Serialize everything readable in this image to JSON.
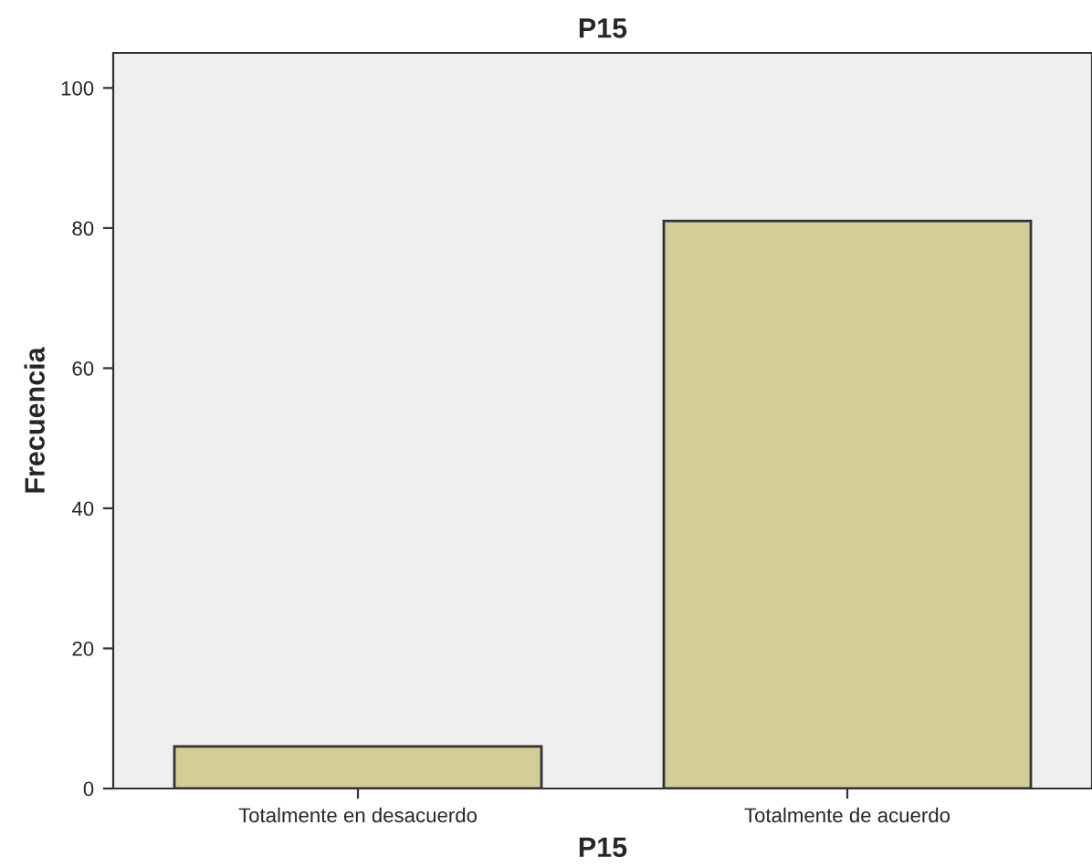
{
  "chart_data": {
    "type": "bar",
    "title": "P15",
    "xlabel": "P15",
    "ylabel": "Frecuencia",
    "categories": [
      "Totalmente en desacuerdo",
      "Totalmente de acuerdo"
    ],
    "values": [
      6,
      81
    ],
    "color": "#d3ce97",
    "ylim": [
      0,
      105
    ],
    "yticks": [
      0,
      20,
      40,
      60,
      80,
      100
    ],
    "grid": false
  }
}
